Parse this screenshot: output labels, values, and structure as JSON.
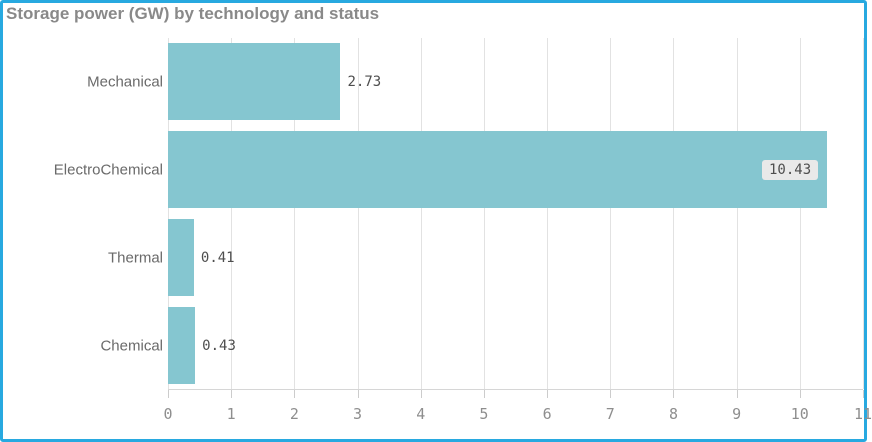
{
  "panel": {
    "border_color": "#28a9e0",
    "background": "#ffffff"
  },
  "chart_data": {
    "type": "bar",
    "orientation": "horizontal",
    "title": "Storage power (GW) by technology and status",
    "categories": [
      "Mechanical",
      "ElectroChemical",
      "Thermal",
      "Chemical"
    ],
    "values": [
      2.73,
      10.43,
      0.41,
      0.43
    ],
    "value_labels": [
      "2.73",
      "10.43",
      "0.41",
      "0.43"
    ],
    "value_label_position": [
      "outside",
      "inside",
      "outside",
      "outside"
    ],
    "xlabel": "",
    "ylabel": "",
    "xlim": [
      0,
      11
    ],
    "x_ticks": [
      "0",
      "1",
      "2",
      "3",
      "4",
      "5",
      "6",
      "7",
      "8",
      "9",
      "10",
      "11"
    ],
    "grid": "vertical",
    "legend": "none",
    "bar_color": "#85c6d0",
    "gridline_color": "#e2e2e2",
    "title_color": "#898989",
    "category_label_color": "#6a6a6a",
    "value_label_color": "#4e4e4e",
    "tick_label_color": "#8e8e8e",
    "inside_label_bg": "#e9e9e9"
  }
}
